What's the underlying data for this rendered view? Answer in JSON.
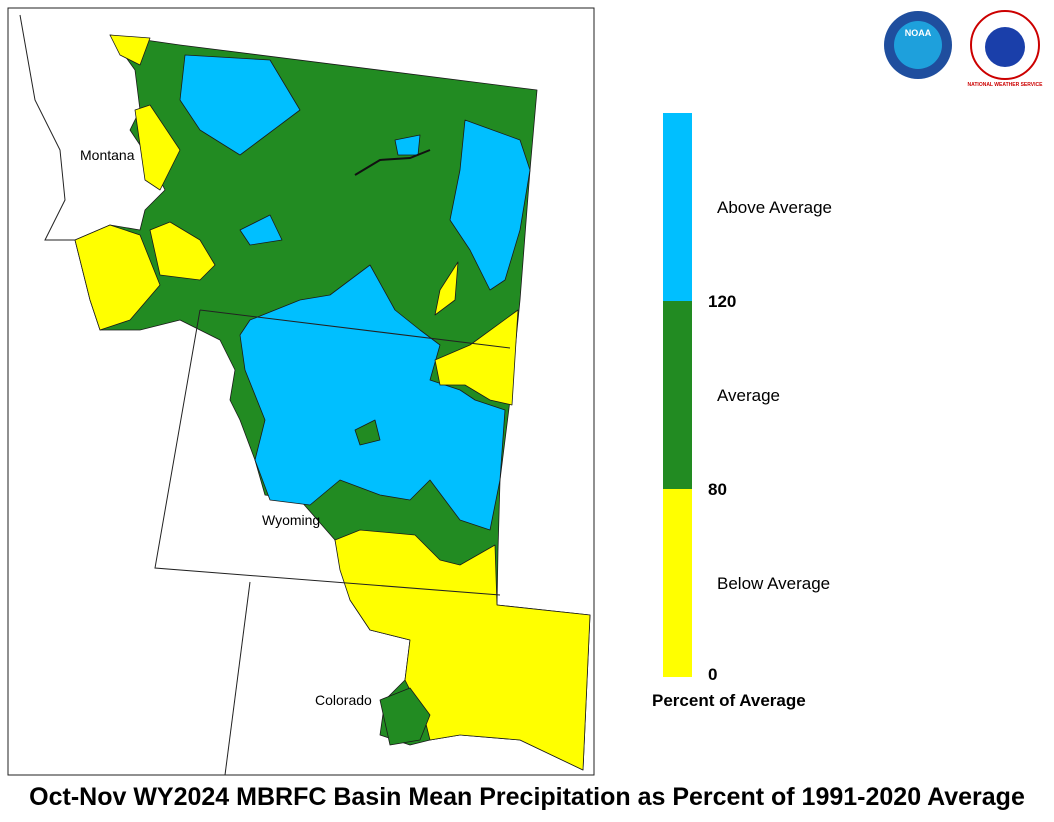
{
  "title": "Oct-Nov WY2024 MBRFC Basin Mean Precipitation as Percent of 1991-2020 Average",
  "states": [
    "Montana",
    "Wyoming",
    "Colorado"
  ],
  "logos": [
    "NOAA",
    "NATIONAL WEATHER SERVICE"
  ],
  "legend": {
    "title": "Percent of Average",
    "breaks": [
      0,
      80,
      120
    ],
    "classes": [
      {
        "label": "Below Average",
        "color": "#ffff00"
      },
      {
        "label": "Average",
        "color": "#228b22"
      },
      {
        "label": "Above Average",
        "color": "#00bfff"
      }
    ]
  }
}
